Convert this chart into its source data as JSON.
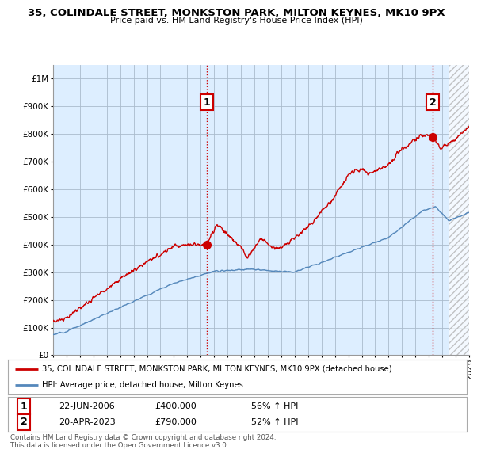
{
  "title1": "35, COLINDALE STREET, MONKSTON PARK, MILTON KEYNES, MK10 9PX",
  "title2": "Price paid vs. HM Land Registry's House Price Index (HPI)",
  "red_label": "35, COLINDALE STREET, MONKSTON PARK, MILTON KEYNES, MK10 9PX (detached house)",
  "blue_label": "HPI: Average price, detached house, Milton Keynes",
  "annotation1_date": "22-JUN-2006",
  "annotation1_price": "£400,000",
  "annotation1_hpi": "56% ↑ HPI",
  "annotation2_date": "20-APR-2023",
  "annotation2_price": "£790,000",
  "annotation2_hpi": "52% ↑ HPI",
  "footnote": "Contains HM Land Registry data © Crown copyright and database right 2024.\nThis data is licensed under the Open Government Licence v3.0.",
  "ylim": [
    0,
    1050000
  ],
  "yticks": [
    0,
    100000,
    200000,
    300000,
    400000,
    500000,
    600000,
    700000,
    800000,
    900000,
    1000000
  ],
  "background_color": "#ffffff",
  "chart_bg_color": "#ddeeff",
  "grid_color": "#aabbcc",
  "red_color": "#cc0000",
  "blue_color": "#5588bb",
  "point1_x": 2006.47,
  "point1_y": 400000,
  "point2_x": 2023.3,
  "point2_y": 790000,
  "vline1_x": 2006.47,
  "vline2_x": 2023.3,
  "xmin": 1995.0,
  "xmax": 2026.0
}
